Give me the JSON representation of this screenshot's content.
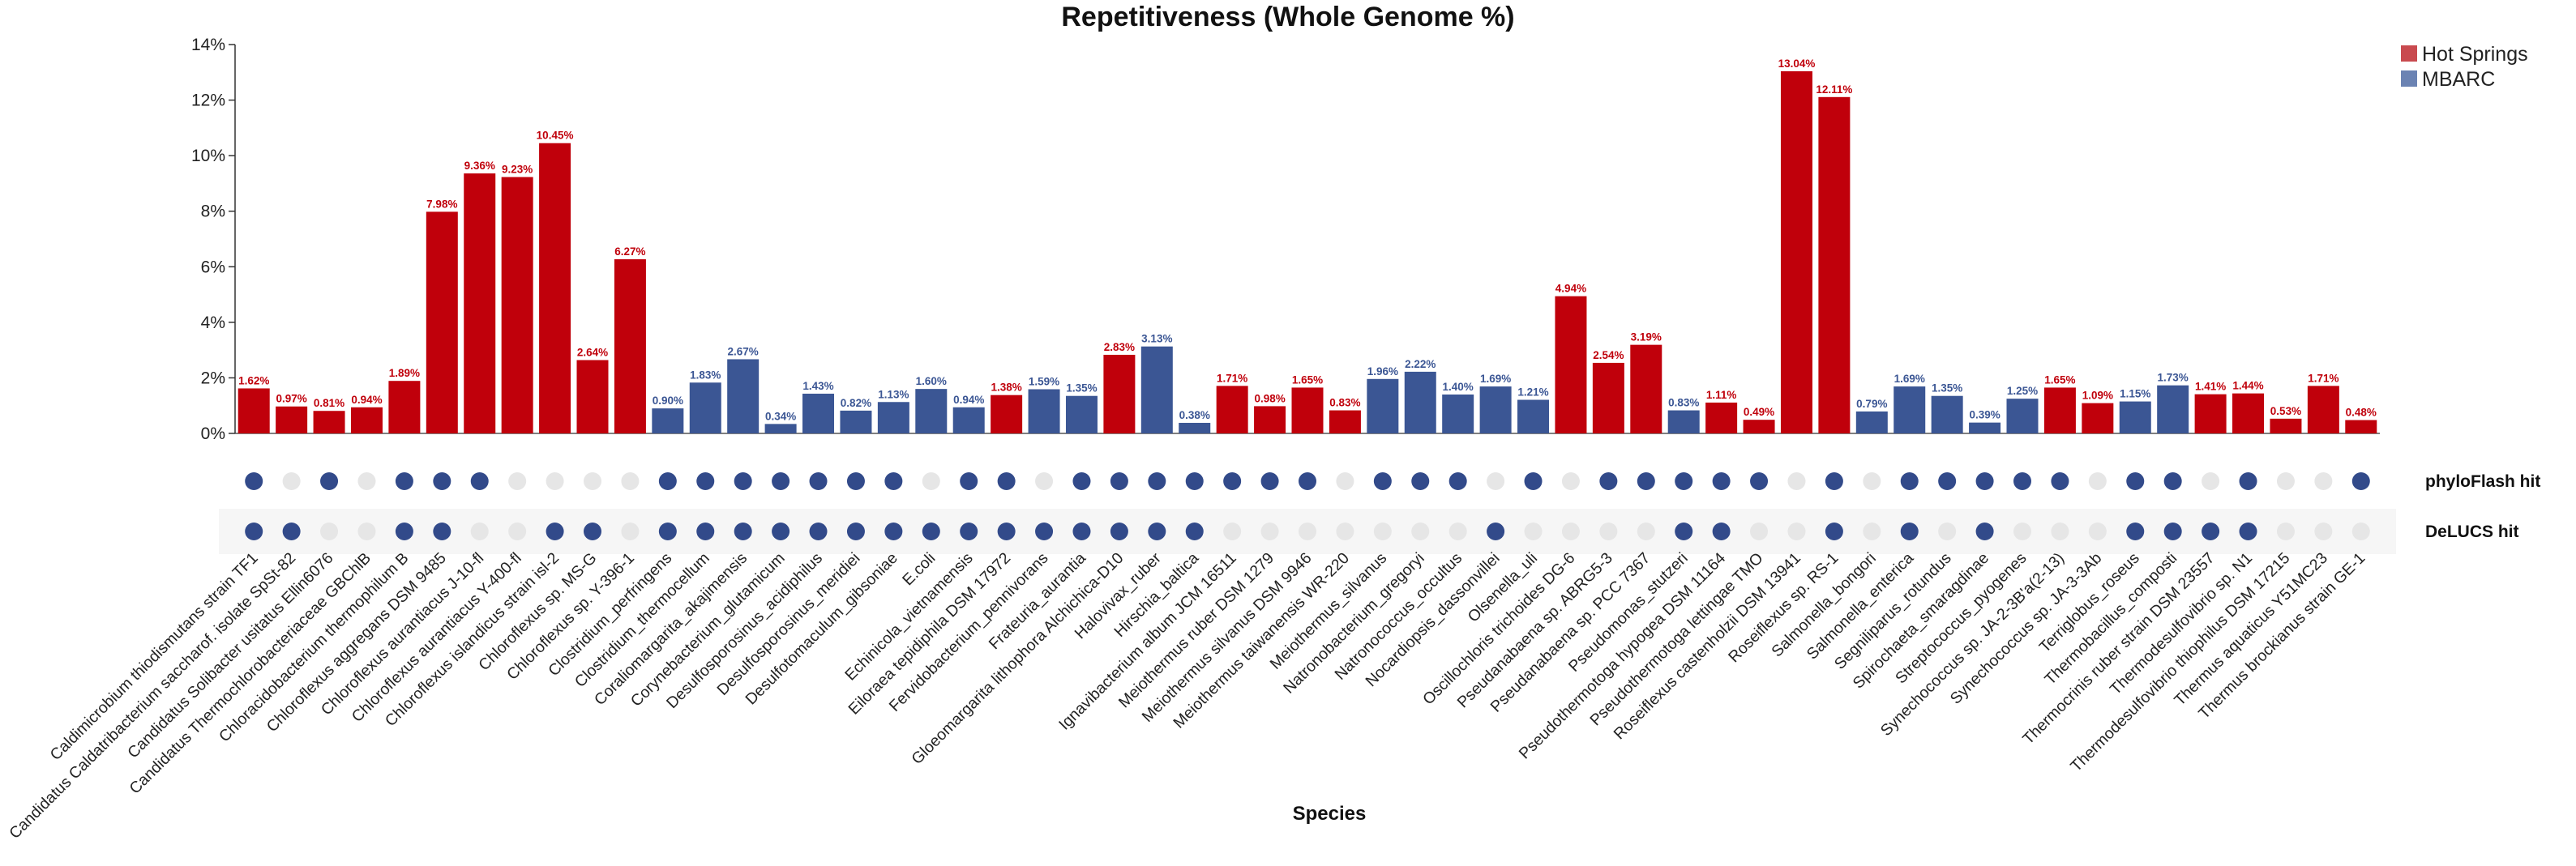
{
  "chart_data": {
    "type": "bar",
    "title": "Repetitiveness (Whole Genome %)",
    "xlabel": "Species",
    "ylabel": "",
    "ylim": [
      0,
      14
    ],
    "yticks": [
      "0%",
      "2%",
      "4%",
      "6%",
      "8%",
      "10%",
      "12%",
      "14%"
    ],
    "legend": {
      "position": "top-right",
      "entries": [
        {
          "name": "Hot Springs",
          "color": "#c0000b"
        },
        {
          "name": "MBARC",
          "color": "#3b5694"
        }
      ]
    },
    "colors": {
      "hot_springs": "#c0000b",
      "hot_springs_legend": "#c94a4f",
      "mbarc": "#3b5694",
      "mbarc_legend": "#6b83b3",
      "dot_hit": "#324a8a",
      "dot_miss": "#e6e6e6"
    },
    "hit_rows": [
      {
        "key": "phyloflash",
        "label": "phyloFlash hit"
      },
      {
        "key": "delucs",
        "label": "DeLUCS hit"
      }
    ],
    "categories": [
      "Caldimicrobium thiodismutans strain TF1",
      "Candidatus Caldatribacterium saccharof. isolate SpSt-82",
      "Candidatus Solibacter usitatus Ellin6076",
      "Candidatus Thermochlorobacteriaceae GBChlB",
      "Chloracidobacterium thermophilum B",
      "Chloroflexus aggregans DSM 9485",
      "Chloroflexus aurantiacus J-10-fl",
      "Chloroflexus aurantiacus Y-400-fl",
      "Chloroflexus islandicus strain isl-2",
      "Chloroflexus sp. MS-G",
      "Chloroflexus sp. Y-396-1",
      "Clostridium_perfringens",
      "Clostridium_thermocellum",
      "Coraliomargarita_akajimensis",
      "Corynebacterium_glutamicum",
      "Desulfosporosinus_acidiphilus",
      "Desulfosporosinus_meridiei",
      "Desulfotomaculum_gibsoniae",
      "E.coli",
      "Echinicola_vietnamensis",
      "Eiloraea tepidiphila DSM 17972",
      "Fervidobacterium_pennivorans",
      "Frateuria_aurantia",
      "Gloeomargarita lithophora Alchichica-D10",
      "Halovivax_ruber",
      "Hirschia_baltica",
      "Ignavibacterium album JCM 16511",
      "Meiothermus ruber DSM 1279",
      "Meiothermus silvanus DSM 9946",
      "Meiothermus taiwanensis WR-220",
      "Meiothermus_silvanus",
      "Natronobacterium_gregoryi",
      "Natronococcus_occultus",
      "Nocardiopsis_dassonvillei",
      "Olsenella_uli",
      "Oscillochloris trichoides DG-6",
      "Pseudanabaena sp. ABRG5-3",
      "Pseudanabaena sp. PCC 7367",
      "Pseudomonas_stutzeri",
      "Pseudothermotoga hypogea DSM 11164",
      "Pseudothermotoga lettingae TMO",
      "Roseiflexus castenholzii DSM 13941",
      "Roseiflexus sp. RS-1",
      "Salmonella_bongori",
      "Salmonella_enterica",
      "Segniliparus_rotundus",
      "Spirochaeta_smaragdinae",
      "Streptococcus_pyogenes",
      "Synechococcus sp. JA-2-3B'a(2-13)",
      "Synechococcus sp. JA-3-3Ab",
      "Terriglobus_roseus",
      "Thermobacillus_composti",
      "Thermocrinis ruber strain DSM 23557",
      "Thermodesulfovibrio sp. N1",
      "Thermodesulfovibrio thiophilus DSM 17215",
      "Thermus aquaticus Y51MC23",
      "Thermus brockianus strain GE-1"
    ],
    "values": [
      1.62,
      0.97,
      0.81,
      0.94,
      1.89,
      7.98,
      9.36,
      9.23,
      10.45,
      2.64,
      6.27,
      0.9,
      1.83,
      2.67,
      0.34,
      1.43,
      0.82,
      1.13,
      1.6,
      0.94,
      1.38,
      1.59,
      1.35,
      2.83,
      3.13,
      0.38,
      1.71,
      0.98,
      1.65,
      0.83,
      1.96,
      2.22,
      1.4,
      1.69,
      1.21,
      4.94,
      2.54,
      3.19,
      0.83,
      1.11,
      0.49,
      13.04,
      12.11,
      0.79,
      1.69,
      1.35,
      0.39,
      1.25,
      1.65,
      1.09,
      1.15,
      1.73,
      1.41,
      1.44,
      0.53,
      1.71,
      0.48
    ],
    "value_labels": [
      "1.62%",
      "0.97%",
      "0.81%",
      "0.94%",
      "1.89%",
      "7.98%",
      "9.36%",
      "9.23%",
      "10.45%",
      "2.64%",
      "6.27%",
      "0.90%",
      "1.83%",
      "2.67%",
      "0.34%",
      "1.43%",
      "0.82%",
      "1.13%",
      "1.60%",
      "0.94%",
      "1.38%",
      "1.59%",
      "1.35%",
      "2.83%",
      "3.13%",
      "0.38%",
      "1.71%",
      "0.98%",
      "1.65%",
      "0.83%",
      "1.96%",
      "2.22%",
      "1.40%",
      "1.69%",
      "1.21%",
      "4.94%",
      "2.54%",
      "3.19%",
      "0.83%",
      "1.11%",
      "0.49%",
      "13.04%",
      "12.11%",
      "0.79%",
      "1.69%",
      "1.35%",
      "0.39%",
      "1.25%",
      "1.65%",
      "1.09%",
      "1.15%",
      "1.73%",
      "1.41%",
      "1.44%",
      "0.53%",
      "1.71%",
      "0.48%"
    ],
    "groups": [
      "Hot Springs",
      "Hot Springs",
      "Hot Springs",
      "Hot Springs",
      "Hot Springs",
      "Hot Springs",
      "Hot Springs",
      "Hot Springs",
      "Hot Springs",
      "Hot Springs",
      "Hot Springs",
      "MBARC",
      "MBARC",
      "MBARC",
      "MBARC",
      "MBARC",
      "MBARC",
      "MBARC",
      "MBARC",
      "MBARC",
      "Hot Springs",
      "MBARC",
      "MBARC",
      "Hot Springs",
      "MBARC",
      "MBARC",
      "Hot Springs",
      "Hot Springs",
      "Hot Springs",
      "Hot Springs",
      "MBARC",
      "MBARC",
      "MBARC",
      "MBARC",
      "MBARC",
      "Hot Springs",
      "Hot Springs",
      "Hot Springs",
      "MBARC",
      "Hot Springs",
      "Hot Springs",
      "Hot Springs",
      "Hot Springs",
      "MBARC",
      "MBARC",
      "MBARC",
      "MBARC",
      "MBARC",
      "Hot Springs",
      "Hot Springs",
      "MBARC",
      "MBARC",
      "Hot Springs",
      "Hot Springs",
      "Hot Springs",
      "Hot Springs",
      "Hot Springs"
    ],
    "phyloflash_hit": [
      true,
      false,
      true,
      false,
      true,
      true,
      true,
      false,
      false,
      false,
      false,
      true,
      true,
      true,
      true,
      true,
      true,
      true,
      false,
      true,
      true,
      false,
      true,
      true,
      true,
      true,
      true,
      true,
      true,
      false,
      true,
      true,
      true,
      false,
      true,
      false,
      true,
      true,
      true,
      true,
      true,
      false,
      true,
      false,
      true,
      true,
      true,
      true,
      true,
      false,
      true,
      true,
      false,
      true,
      false,
      false,
      true
    ],
    "delucs_hit": [
      true,
      true,
      false,
      false,
      true,
      true,
      false,
      false,
      true,
      true,
      false,
      true,
      true,
      true,
      true,
      true,
      true,
      true,
      true,
      true,
      true,
      true,
      true,
      true,
      true,
      true,
      false,
      false,
      false,
      false,
      false,
      false,
      false,
      true,
      false,
      false,
      false,
      false,
      true,
      true,
      false,
      false,
      true,
      false,
      true,
      false,
      true,
      false,
      false,
      false,
      true,
      true,
      true,
      true,
      false,
      false,
      false
    ]
  }
}
